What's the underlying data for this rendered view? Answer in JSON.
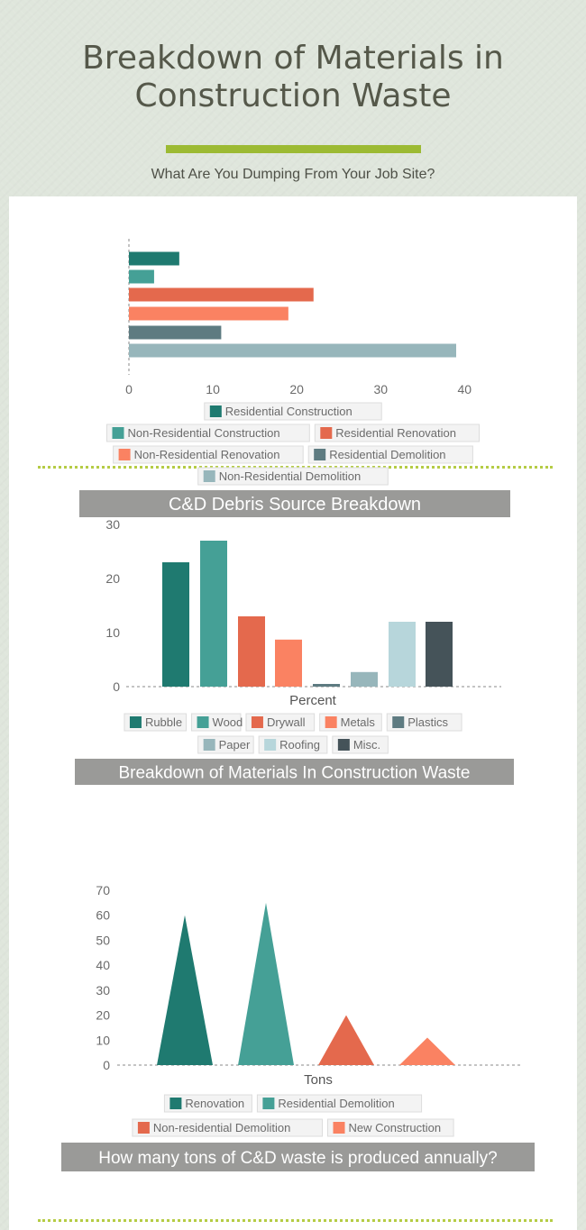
{
  "header": {
    "title": "Breakdown of Materials in Construction Waste",
    "subtitle": "What Are You Dumping From Your Job Site?"
  },
  "colors": {
    "background": "#dfe6dc",
    "title": "#55584a",
    "accent_bar": "#9cba33",
    "dotted_rule": "#b5cc45",
    "banner": "#9a9a98"
  },
  "chart_data": [
    {
      "type": "bar",
      "orientation": "horizontal",
      "title": "C&D Debris Source Breakdown",
      "xlabel": "",
      "ylabel": "",
      "xlim": [
        0,
        40
      ],
      "x_ticks": [
        "0",
        "10",
        "20",
        "30",
        "40"
      ],
      "series": [
        {
          "name": "Residential Construction",
          "value": 6,
          "color": "#1f7a70"
        },
        {
          "name": "Non-Residential Construction",
          "value": 3,
          "color": "#45a096"
        },
        {
          "name": "Residential Renovation",
          "value": 22,
          "color": "#e4694d"
        },
        {
          "name": "Non-Residential Renovation",
          "value": 19,
          "color": "#fa8262"
        },
        {
          "name": "Residential Demolition",
          "value": 11,
          "color": "#5e7b81"
        },
        {
          "name": "Non-Residential Demolition",
          "value": 39,
          "color": "#97b6bb"
        }
      ],
      "legend_position": "bottom",
      "grid": false
    },
    {
      "type": "bar",
      "title": "Breakdown of Materials In Construction Waste",
      "xlabel": "Percent",
      "ylabel": "",
      "ylim": [
        0,
        30
      ],
      "y_ticks": [
        "0",
        "10",
        "20",
        "30"
      ],
      "series": [
        {
          "name": "Rubble",
          "value": 23,
          "color": "#1f7a70"
        },
        {
          "name": "Wood",
          "value": 27,
          "color": "#45a096"
        },
        {
          "name": "Drywall",
          "value": 13,
          "color": "#e4694d"
        },
        {
          "name": "Metals",
          "value": 8.7,
          "color": "#fa8262"
        },
        {
          "name": "Plastics",
          "value": 0.5,
          "color": "#5e7b81"
        },
        {
          "name": "Paper",
          "value": 2.7,
          "color": "#97b6bb"
        },
        {
          "name": "Roofing",
          "value": 12,
          "color": "#b7d6db"
        },
        {
          "name": "Misc.",
          "value": 12,
          "color": "#455359"
        }
      ],
      "legend_position": "bottom",
      "grid": false
    },
    {
      "type": "bar",
      "shape": "triangle",
      "title": "How many tons of C&D waste is produced annually?",
      "xlabel": "Tons",
      "ylabel": "",
      "ylim": [
        0,
        70
      ],
      "y_ticks": [
        "0",
        "10",
        "20",
        "30",
        "40",
        "50",
        "60",
        "70"
      ],
      "series": [
        {
          "name": "Renovation",
          "value": 60,
          "color": "#1f7a70"
        },
        {
          "name": "Residential Demolition",
          "value": 65,
          "color": "#45a096"
        },
        {
          "name": "Non-residential Demolition",
          "value": 20,
          "color": "#e4694d"
        },
        {
          "name": "New Construction",
          "value": 11,
          "color": "#fa8262"
        }
      ],
      "legend_position": "bottom",
      "grid": false
    }
  ]
}
